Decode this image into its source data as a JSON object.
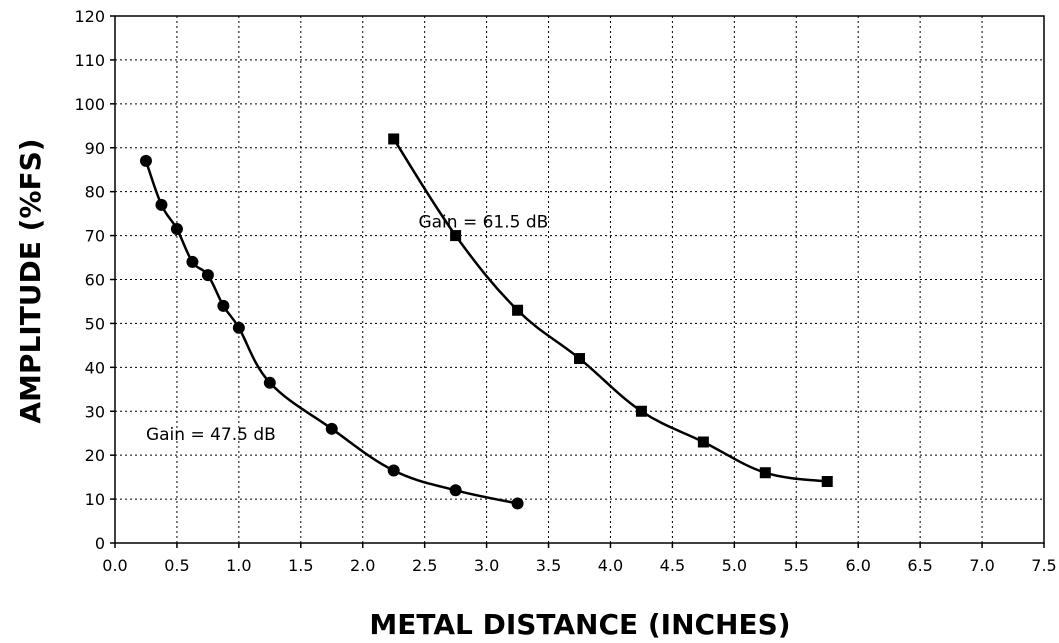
{
  "chart_data": {
    "type": "line",
    "xlabel": "METAL DISTANCE (INCHES)",
    "ylabel": "AMPLITUDE (%FS)",
    "xlim": [
      0,
      7.5
    ],
    "ylim": [
      0,
      120
    ],
    "xticks": [
      "0.0",
      "0.5",
      "1.0",
      "1.5",
      "2.0",
      "2.5",
      "3.0",
      "3.5",
      "4.0",
      "4.5",
      "5.0",
      "5.5",
      "6.0",
      "6.5",
      "7.0",
      "7.5"
    ],
    "yticks": [
      "0",
      "10",
      "20",
      "30",
      "40",
      "50",
      "60",
      "70",
      "80",
      "90",
      "100",
      "110",
      "120"
    ],
    "grid": true,
    "series": [
      {
        "marker": "circle",
        "x": [
          0.25,
          0.375,
          0.5,
          0.625,
          0.75,
          0.875,
          1.0,
          1.25,
          1.75,
          2.25,
          2.75,
          3.25
        ],
        "y": [
          87,
          77,
          71.5,
          64,
          61,
          54,
          49,
          36.5,
          26,
          16.5,
          12,
          9
        ]
      },
      {
        "marker": "square",
        "x": [
          2.25,
          2.75,
          3.25,
          3.75,
          4.25,
          4.75,
          5.25,
          5.75
        ],
        "y": [
          92,
          70,
          53,
          42,
          30,
          23,
          16,
          14
        ]
      }
    ],
    "annotations": [
      {
        "text": "Gain = 61.5 dB",
        "x": 2.45,
        "y": 71.8
      },
      {
        "text": "Gain = 47.5 dB",
        "x": 0.25,
        "y": 23.5
      }
    ]
  }
}
